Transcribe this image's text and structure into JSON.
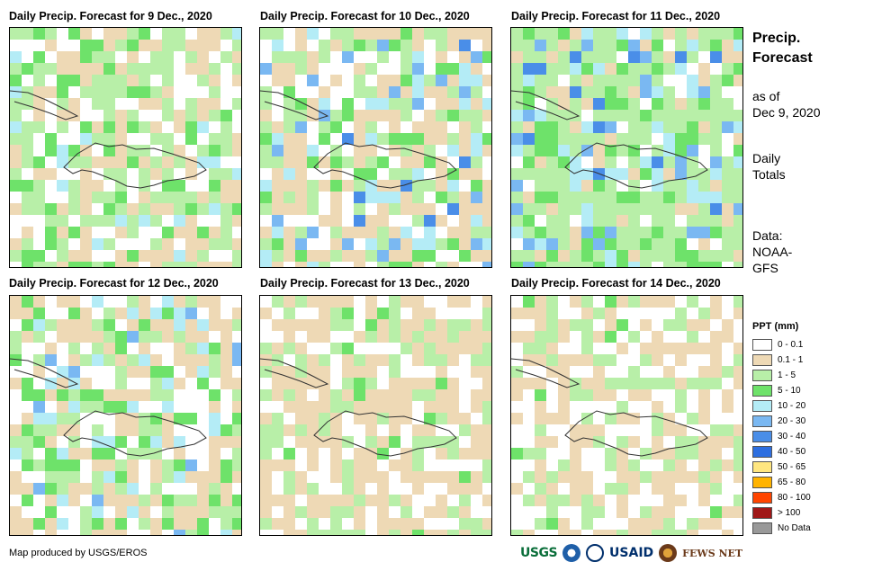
{
  "panels": [
    {
      "title": "Daily Precip. Forecast for 9 Dec., 2020"
    },
    {
      "title": "Daily Precip. Forecast for 10 Dec., 2020"
    },
    {
      "title": "Daily Precip. Forecast for 11 Dec., 2020"
    },
    {
      "title": "Daily Precip. Forecast for 12 Dec., 2020"
    },
    {
      "title": "Daily Precip. Forecast for 13 Dec., 2020"
    },
    {
      "title": "Daily Precip. Forecast for 14 Dec., 2020"
    }
  ],
  "side": {
    "title_line1": "Precip.",
    "title_line2": "Forecast",
    "asof_line1": "as of",
    "asof_line2": "Dec 9, 2020",
    "totals_line1": "Daily",
    "totals_line2": "Totals",
    "data_line1": "Data:",
    "data_line2": "NOAA-",
    "data_line3": "GFS"
  },
  "legend": {
    "title": "PPT (mm)",
    "items": [
      {
        "label": "0 - 0.1",
        "color": "#ffffff"
      },
      {
        "label": "0.1 - 1",
        "color": "#eed9b5"
      },
      {
        "label": "1 - 5",
        "color": "#b8efa8"
      },
      {
        "label": "5 - 10",
        "color": "#6ee26a"
      },
      {
        "label": "10 - 20",
        "color": "#b4ecf6"
      },
      {
        "label": "20 - 30",
        "color": "#7ab8f2"
      },
      {
        "label": "30 - 40",
        "color": "#4a8ee8"
      },
      {
        "label": "40 - 50",
        "color": "#2e6fe0"
      },
      {
        "label": "50 - 65",
        "color": "#ffe680"
      },
      {
        "label": "65 - 80",
        "color": "#ffb300"
      },
      {
        "label": "80 - 100",
        "color": "#ff4500"
      },
      {
        "label": "> 100",
        "color": "#a01818"
      },
      {
        "label": "No Data",
        "color": "#999999"
      }
    ]
  },
  "credit": "Map produced by USGS/EROS",
  "logos": {
    "usgs": "USGS",
    "usaid": "USAID",
    "fewsnet": "FEWS NET"
  }
}
